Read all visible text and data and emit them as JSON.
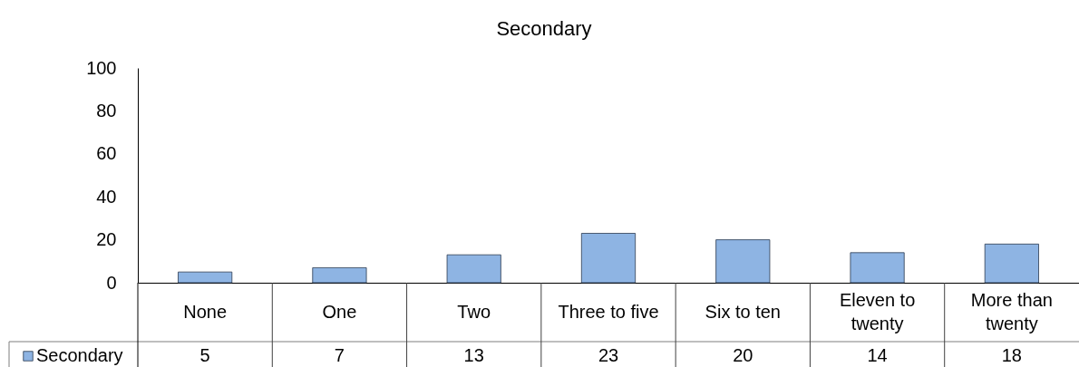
{
  "chart_data": {
    "type": "bar",
    "title": "Secondary",
    "categories": [
      "None",
      "One",
      "Two",
      "Three to five",
      "Six to ten",
      "Eleven to twenty",
      "More than twenty"
    ],
    "series": [
      {
        "name": "Secondary",
        "color": "#8eb4e3",
        "values": [
          5,
          7,
          13,
          23,
          20,
          14,
          18
        ]
      }
    ],
    "ylim": [
      0,
      100
    ],
    "yticks": [
      0,
      20,
      40,
      60,
      80,
      100
    ],
    "data_labels": true,
    "legend": "bottom left"
  }
}
